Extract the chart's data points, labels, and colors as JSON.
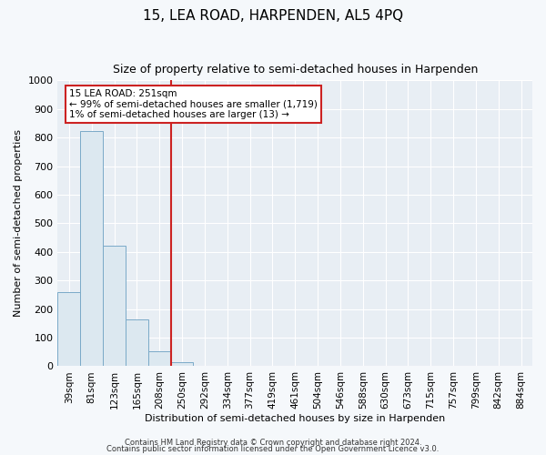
{
  "title": "15, LEA ROAD, HARPENDEN, AL5 4PQ",
  "subtitle": "Size of property relative to semi-detached houses in Harpenden",
  "xlabel": "Distribution of semi-detached houses by size in Harpenden",
  "ylabel": "Number of semi-detached properties",
  "bar_labels": [
    "39sqm",
    "81sqm",
    "123sqm",
    "165sqm",
    "208sqm",
    "250sqm",
    "292sqm",
    "334sqm",
    "377sqm",
    "419sqm",
    "461sqm",
    "504sqm",
    "546sqm",
    "588sqm",
    "630sqm",
    "673sqm",
    "715sqm",
    "757sqm",
    "799sqm",
    "842sqm",
    "884sqm"
  ],
  "bar_heights": [
    260,
    822,
    422,
    165,
    52,
    13,
    0,
    0,
    0,
    0,
    0,
    0,
    0,
    0,
    0,
    0,
    0,
    0,
    0,
    0,
    0
  ],
  "bar_color": "#dce8f0",
  "bar_edge_color": "#7aaac8",
  "property_line_x": 5.0,
  "annotation_text_line1": "15 LEA ROAD: 251sqm",
  "annotation_text_line2": "← 99% of semi-detached houses are smaller (1,719)",
  "annotation_text_line3": "1% of semi-detached houses are larger (13) →",
  "annotation_box_color": "#ffffff",
  "annotation_box_edge_color": "#cc2222",
  "vline_color": "#cc2222",
  "ylim": [
    0,
    1000
  ],
  "yticks": [
    0,
    100,
    200,
    300,
    400,
    500,
    600,
    700,
    800,
    900,
    1000
  ],
  "footer1": "Contains HM Land Registry data © Crown copyright and database right 2024.",
  "footer2": "Contains public sector information licensed under the Open Government Licence v3.0.",
  "plot_bg_color": "#e8eef4",
  "fig_bg_color": "#f5f8fb",
  "grid_color": "#ffffff",
  "title_fontsize": 11,
  "subtitle_fontsize": 9,
  "xlabel_fontsize": 8,
  "ylabel_fontsize": 8,
  "tick_fontsize": 7.5,
  "ytick_fontsize": 8
}
